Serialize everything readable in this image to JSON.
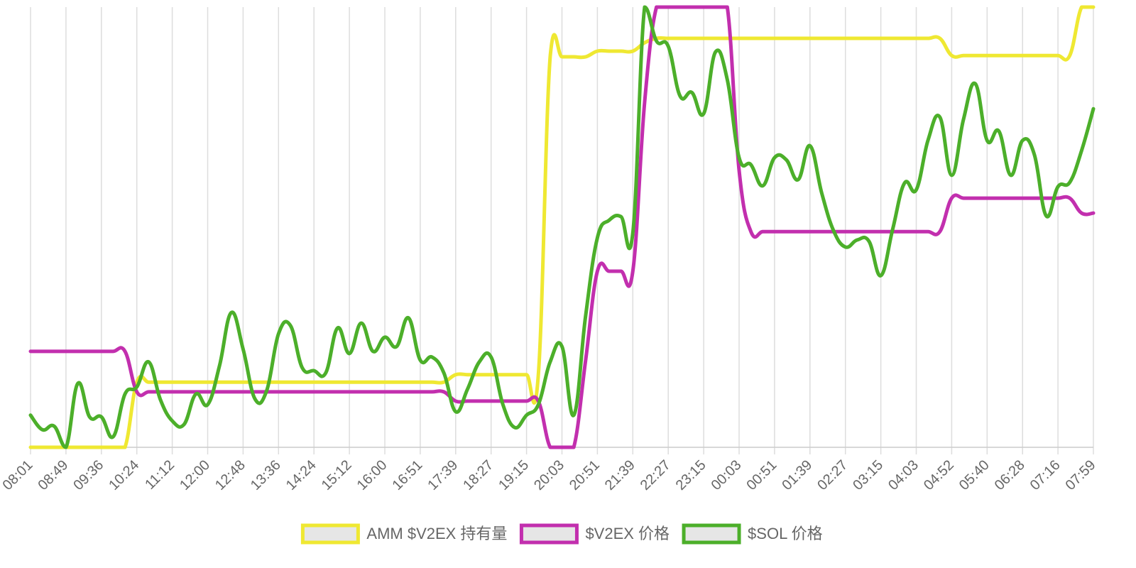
{
  "chart_data": {
    "type": "line",
    "categories": [
      "08:01",
      null,
      null,
      "08:49",
      null,
      null,
      "09:36",
      null,
      null,
      "10:24",
      null,
      null,
      "11:12",
      null,
      null,
      "12:00",
      null,
      null,
      "12:48",
      null,
      null,
      "13:36",
      null,
      null,
      "14:24",
      null,
      null,
      "15:12",
      null,
      null,
      "16:00",
      null,
      null,
      "16:51",
      null,
      null,
      "17:39",
      null,
      null,
      "18:27",
      null,
      null,
      "19:15",
      null,
      null,
      "20:03",
      null,
      null,
      "20:51",
      null,
      null,
      "21:39",
      null,
      null,
      "22:27",
      null,
      null,
      "23:15",
      null,
      null,
      "00:03",
      null,
      null,
      "00:51",
      null,
      null,
      "01:39",
      null,
      null,
      "02:27",
      null,
      null,
      "03:15",
      null,
      null,
      "04:03",
      null,
      null,
      "04:52",
      null,
      null,
      "05:40",
      null,
      null,
      "06:28",
      null,
      null,
      "07:16",
      null,
      null,
      "07:59"
    ],
    "series": [
      {
        "name": "AMM $V2EX 持有量",
        "color": "#efe832",
        "values": [
          0,
          0,
          0,
          0,
          0,
          0,
          0,
          0,
          0,
          14.8,
          14.8,
          14.8,
          14.8,
          14.8,
          14.8,
          14.8,
          14.8,
          14.8,
          14.8,
          14.8,
          14.8,
          14.8,
          14.8,
          14.8,
          14.8,
          14.8,
          14.8,
          14.8,
          14.8,
          14.8,
          14.8,
          14.8,
          14.8,
          14.8,
          14.8,
          14.8,
          16.5,
          16.5,
          16.5,
          16.5,
          16.5,
          16.5,
          16.5,
          16.5,
          88.7,
          88.7,
          88.7,
          88.7,
          90.0,
          90.0,
          90.0,
          90.0,
          91.9,
          92.9,
          92.9,
          92.9,
          92.9,
          92.9,
          92.9,
          92.9,
          92.9,
          92.9,
          92.9,
          92.9,
          92.9,
          92.9,
          92.9,
          92.9,
          92.9,
          92.9,
          92.9,
          92.9,
          92.9,
          92.9,
          92.9,
          92.9,
          92.9,
          92.9,
          89.0,
          89.0,
          89.0,
          89.0,
          89.0,
          89.0,
          89.0,
          89.0,
          89.0,
          89.0,
          89.0,
          100,
          100
        ]
      },
      {
        "name": "$V2EX 价格",
        "color": "#c22fae",
        "values": [
          21.8,
          21.8,
          21.8,
          21.8,
          21.8,
          21.8,
          21.8,
          21.8,
          21.8,
          12.6,
          12.6,
          12.6,
          12.6,
          12.6,
          12.6,
          12.6,
          12.6,
          12.6,
          12.6,
          12.6,
          12.6,
          12.6,
          12.6,
          12.6,
          12.6,
          12.6,
          12.6,
          12.6,
          12.6,
          12.6,
          12.6,
          12.6,
          12.6,
          12.6,
          12.6,
          12.6,
          10.5,
          10.5,
          10.5,
          10.5,
          10.5,
          10.5,
          10.5,
          10.5,
          0,
          0,
          0,
          19.7,
          40.0,
          40.0,
          40.0,
          40.0,
          78.4,
          100,
          100,
          100,
          100,
          100,
          100,
          100,
          62.9,
          49.0,
          49.0,
          49.0,
          49.0,
          49.0,
          49.0,
          49.0,
          49.0,
          49.0,
          49.0,
          49.0,
          49.0,
          49.0,
          49.0,
          49.0,
          49.0,
          49.0,
          56.6,
          56.6,
          56.6,
          56.6,
          56.6,
          56.6,
          56.6,
          56.6,
          56.6,
          56.6,
          56.6,
          53.2,
          53.2
        ]
      },
      {
        "name": "$SOL 价格",
        "color": "#4caf2a",
        "values": [
          7.3,
          4.0,
          4.8,
          0,
          14.5,
          6.9,
          6.9,
          2.4,
          12.1,
          13.7,
          19.4,
          10.8,
          6.0,
          5.2,
          12.1,
          9.7,
          18.5,
          30.6,
          22.3,
          11.0,
          12.9,
          25.8,
          27.7,
          18.1,
          17.4,
          16.9,
          27.1,
          21.3,
          28.2,
          21.8,
          25.0,
          22.9,
          29.4,
          19.8,
          20.5,
          16.9,
          8.1,
          13.2,
          19.4,
          20.5,
          9.7,
          4.5,
          7.3,
          9.7,
          19.4,
          22.9,
          7.3,
          29.8,
          47.6,
          51.6,
          52.4,
          48.7,
          100,
          92.3,
          91.1,
          79.8,
          80.6,
          75.8,
          89.8,
          83.5,
          65.8,
          64.2,
          59.4,
          65.8,
          65.3,
          60.8,
          68.5,
          57.7,
          49.2,
          45.5,
          47.1,
          46.8,
          39.0,
          49.5,
          60.0,
          58.5,
          69.8,
          75.0,
          61.8,
          74.5,
          82.6,
          69.7,
          71.8,
          61.8,
          69.7,
          66.5,
          52.6,
          59.2,
          60.2,
          67.4,
          76.9
        ]
      }
    ],
    "ylim": [
      0,
      100
    ],
    "grid": true,
    "legend": "bottom"
  }
}
